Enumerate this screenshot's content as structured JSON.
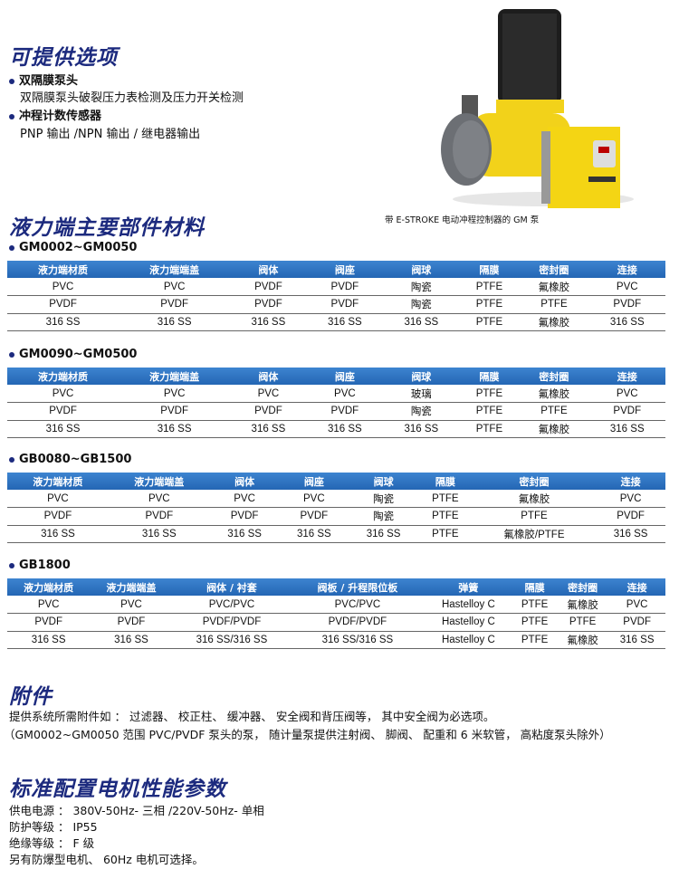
{
  "options": {
    "title": "可提供选项",
    "items": [
      {
        "label": "双隔膜泵头",
        "detail": "双隔膜泵头破裂压力表检测及压力开关检测"
      },
      {
        "label": "冲程计数传感器",
        "detail": "PNP 输出 /NPN 输出 / 继电器输出"
      }
    ]
  },
  "image": {
    "caption": "带 E-STROKE 电动冲程控制器的 GM 泵",
    "colors": {
      "body": "#f2d21a",
      "motor": "#1a1a1a",
      "head": "#6c6f74"
    }
  },
  "materials": {
    "title": "液力端主要部件材料",
    "tables": [
      {
        "model": "GM0002~GM0050",
        "headers": [
          "液力端材质",
          "液力端端盖",
          "阀体",
          "阀座",
          "阀球",
          "隔膜",
          "密封圈",
          "连接"
        ],
        "rows": [
          [
            "PVC",
            "PVC",
            "PVDF",
            "PVDF",
            "陶瓷",
            "PTFE",
            "氟橡胶",
            "PVC"
          ],
          [
            "PVDF",
            "PVDF",
            "PVDF",
            "PVDF",
            "陶瓷",
            "PTFE",
            "PTFE",
            "PVDF"
          ],
          [
            "316 SS",
            "316 SS",
            "316 SS",
            "316 SS",
            "316 SS",
            "PTFE",
            "氟橡胶",
            "316 SS"
          ]
        ]
      },
      {
        "model": "GM0090~GM0500",
        "headers": [
          "液力端材质",
          "液力端端盖",
          "阀体",
          "阀座",
          "阀球",
          "隔膜",
          "密封圈",
          "连接"
        ],
        "rows": [
          [
            "PVC",
            "PVC",
            "PVC",
            "PVC",
            "玻璃",
            "PTFE",
            "氟橡胶",
            "PVC"
          ],
          [
            "PVDF",
            "PVDF",
            "PVDF",
            "PVDF",
            "陶瓷",
            "PTFE",
            "PTFE",
            "PVDF"
          ],
          [
            "316 SS",
            "316 SS",
            "316 SS",
            "316 SS",
            "316 SS",
            "PTFE",
            "氟橡胶",
            "316 SS"
          ]
        ]
      },
      {
        "model": "GB0080~GB1500",
        "headers": [
          "液力端材质",
          "液力端端盖",
          "阀体",
          "阀座",
          "阀球",
          "隔膜",
          "密封圈",
          "连接"
        ],
        "rows": [
          [
            "PVC",
            "PVC",
            "PVC",
            "PVC",
            "陶瓷",
            "PTFE",
            "氟橡胶",
            "PVC"
          ],
          [
            "PVDF",
            "PVDF",
            "PVDF",
            "PVDF",
            "陶瓷",
            "PTFE",
            "PTFE",
            "PVDF"
          ],
          [
            "316 SS",
            "316 SS",
            "316 SS",
            "316 SS",
            "316 SS",
            "PTFE",
            "氟橡胶/PTFE",
            "316 SS"
          ]
        ]
      },
      {
        "model": "GB1800",
        "headers": [
          "液力端材质",
          "液力端端盖",
          "阀体 / 衬套",
          "阀板 / 升程限位板",
          "弹簧",
          "隔膜",
          "密封圈",
          "连接"
        ],
        "rows": [
          [
            "PVC",
            "PVC",
            "PVC/PVC",
            "PVC/PVC",
            "Hastelloy C",
            "PTFE",
            "氟橡胶",
            "PVC"
          ],
          [
            "PVDF",
            "PVDF",
            "PVDF/PVDF",
            "PVDF/PVDF",
            "Hastelloy C",
            "PTFE",
            "PTFE",
            "PVDF"
          ],
          [
            "316 SS",
            "316 SS",
            "316 SS/316 SS",
            "316 SS/316 SS",
            "Hastelloy C",
            "PTFE",
            "氟橡胶",
            "316 SS"
          ]
        ]
      }
    ]
  },
  "accessories": {
    "title": "附件",
    "lines": [
      "提供系统所需附件如 ： 过滤器、 校正柱、 缓冲器、 安全阀和背压阀等， 其中安全阀为必选项。",
      "（GM0002~GM0050 范围 PVC/PVDF 泵头的泵， 随计量泵提供注射阀、 脚阀、 配重和 6 米软管， 高粘度泵头除外）"
    ]
  },
  "motor": {
    "title": "标准配置电机性能参数",
    "lines": [
      "供电电源 ： 380V-50Hz- 三相 /220V-50Hz- 单相",
      "防护等级 ： IP55",
      "绝缘等级 ： F 级",
      "另有防爆型电机、 60Hz 电机可选择。"
    ]
  }
}
